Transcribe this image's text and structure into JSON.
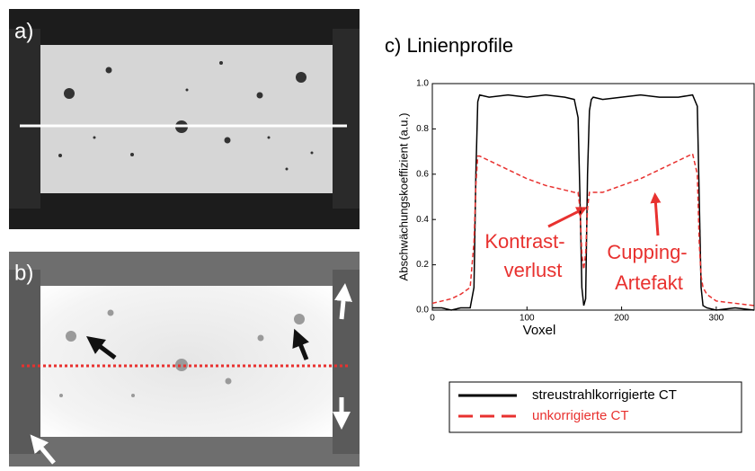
{
  "panels": [
    "a)",
    "b)"
  ],
  "chart_data": {
    "type": "line",
    "title": "c) Linienprofile",
    "x_label": "Voxel",
    "y_label": "Abschwächungskoeffizient (a.u.)",
    "xlim": [
      0,
      340
    ],
    "ylim": [
      0,
      1
    ],
    "xticks": [
      0,
      100,
      200,
      300
    ],
    "yticks": [
      {
        "value": 0,
        "label": "0.0"
      },
      0.2,
      0.4,
      0.6,
      0.8,
      {
        "value": 1,
        "label": "1.0"
      }
    ],
    "x": [
      0,
      10,
      20,
      30,
      40,
      44,
      46,
      48,
      50,
      60,
      80,
      100,
      120,
      140,
      150,
      154,
      156,
      158,
      160,
      162,
      164,
      166,
      168,
      170,
      180,
      200,
      220,
      240,
      260,
      275,
      280,
      282,
      284,
      286,
      290,
      300,
      320,
      340
    ],
    "series": [
      {
        "name": "streustrahlkorrigierte CT",
        "color": "#000000",
        "linestyle": "solid",
        "values": [
          0.01,
          0.01,
          0.0,
          0.01,
          0.01,
          0.1,
          0.6,
          0.92,
          0.95,
          0.94,
          0.95,
          0.94,
          0.95,
          0.94,
          0.93,
          0.85,
          0.5,
          0.1,
          0.02,
          0.05,
          0.6,
          0.88,
          0.93,
          0.94,
          0.93,
          0.94,
          0.95,
          0.94,
          0.94,
          0.95,
          0.9,
          0.5,
          0.1,
          0.02,
          0.01,
          0.0,
          0.01,
          0.0
        ]
      },
      {
        "name": "unkorrigierte CT",
        "color": "#e8312f",
        "linestyle": "dashed",
        "values": [
          0.03,
          0.04,
          0.05,
          0.07,
          0.1,
          0.3,
          0.55,
          0.68,
          0.68,
          0.66,
          0.62,
          0.58,
          0.55,
          0.53,
          0.52,
          0.52,
          0.45,
          0.25,
          0.18,
          0.25,
          0.45,
          0.52,
          0.52,
          0.52,
          0.52,
          0.55,
          0.58,
          0.62,
          0.66,
          0.69,
          0.6,
          0.3,
          0.15,
          0.1,
          0.07,
          0.04,
          0.03,
          0.02
        ]
      }
    ],
    "annotations": [
      "Kontrast-",
      "verlust",
      "Cupping-",
      "Artefakt"
    ]
  }
}
